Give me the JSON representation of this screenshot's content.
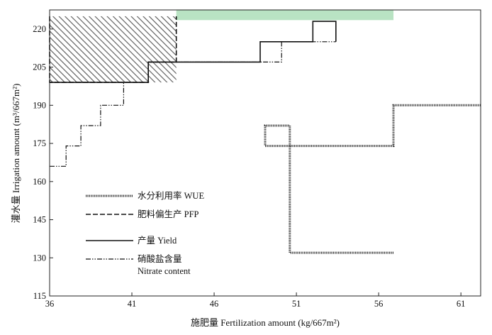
{
  "chart_data": {
    "type": "line",
    "title": "",
    "xlabel": "施肥量  Fertilization amount (kg/667m²)",
    "ylabel": "灌水量 Irrigation amount (m³/667m²)",
    "xlim": [
      36,
      62.2
    ],
    "ylim": [
      115,
      227.5
    ],
    "xticks": [
      "36",
      "41",
      "46",
      "51",
      "56",
      "61"
    ],
    "yticks": [
      "115",
      "130",
      "145",
      "160",
      "175",
      "190",
      "205",
      "220"
    ],
    "grid": false,
    "legend_position": "left-center",
    "series": [
      {
        "name": "水分利用率 WUE",
        "style": "dotted-thick",
        "x": [
          56.9,
          56.9,
          50.6,
          50.6,
          49.1,
          49.1,
          56.9,
          56.9,
          62.2
        ],
        "y": [
          132,
          132,
          132,
          182,
          182,
          174,
          174,
          190,
          190
        ]
      },
      {
        "name": "肥料偏生产 PFP",
        "style": "dashed",
        "x": [
          36,
          36,
          42,
          42,
          43.7,
          43.7
        ],
        "y": [
          225,
          199,
          199,
          207,
          207,
          225
        ]
      },
      {
        "name": "产量 Yield",
        "style": "solid",
        "x": [
          36,
          42,
          42,
          48.8,
          48.8,
          52,
          52,
          53.4,
          53.4,
          53.4
        ],
        "y": [
          199,
          199,
          207,
          207,
          215,
          215,
          223,
          223,
          215,
          223
        ]
      },
      {
        "name": "硝酸盐含量 Nitrate content",
        "style": "dash-dot-dot",
        "x": [
          36,
          37,
          37,
          37.9,
          37.9,
          39.1,
          39.1,
          40.5,
          40.5,
          42,
          42,
          43.7,
          43.7,
          45.5,
          45.5,
          48.8,
          48.8,
          50.1,
          50.1,
          52,
          52,
          53.4
        ],
        "y": [
          166,
          166,
          174,
          174,
          182,
          182,
          190,
          190,
          199,
          199,
          207,
          207,
          207,
          207,
          207,
          207,
          207,
          207,
          215,
          215,
          215,
          215
        ]
      }
    ],
    "regions": [
      {
        "label": "",
        "fill": "hatched",
        "x": [
          36,
          43.7
        ],
        "y": [
          199,
          225
        ]
      },
      {
        "label": "",
        "fill": "#b9e3c3",
        "x": [
          43.7,
          56.9
        ],
        "y": [
          223.5,
          229
        ]
      }
    ],
    "legend": [
      {
        "label": "水分利用率 WUE",
        "style": "dotted-thick"
      },
      {
        "label": "肥料偏生产 PFP",
        "style": "dashed"
      },
      {
        "label": "产量 Yield",
        "style": "solid"
      },
      {
        "label": "硝酸盐含量",
        "label2": "Nitrate content",
        "style": "dash-dot-dot"
      }
    ]
  }
}
